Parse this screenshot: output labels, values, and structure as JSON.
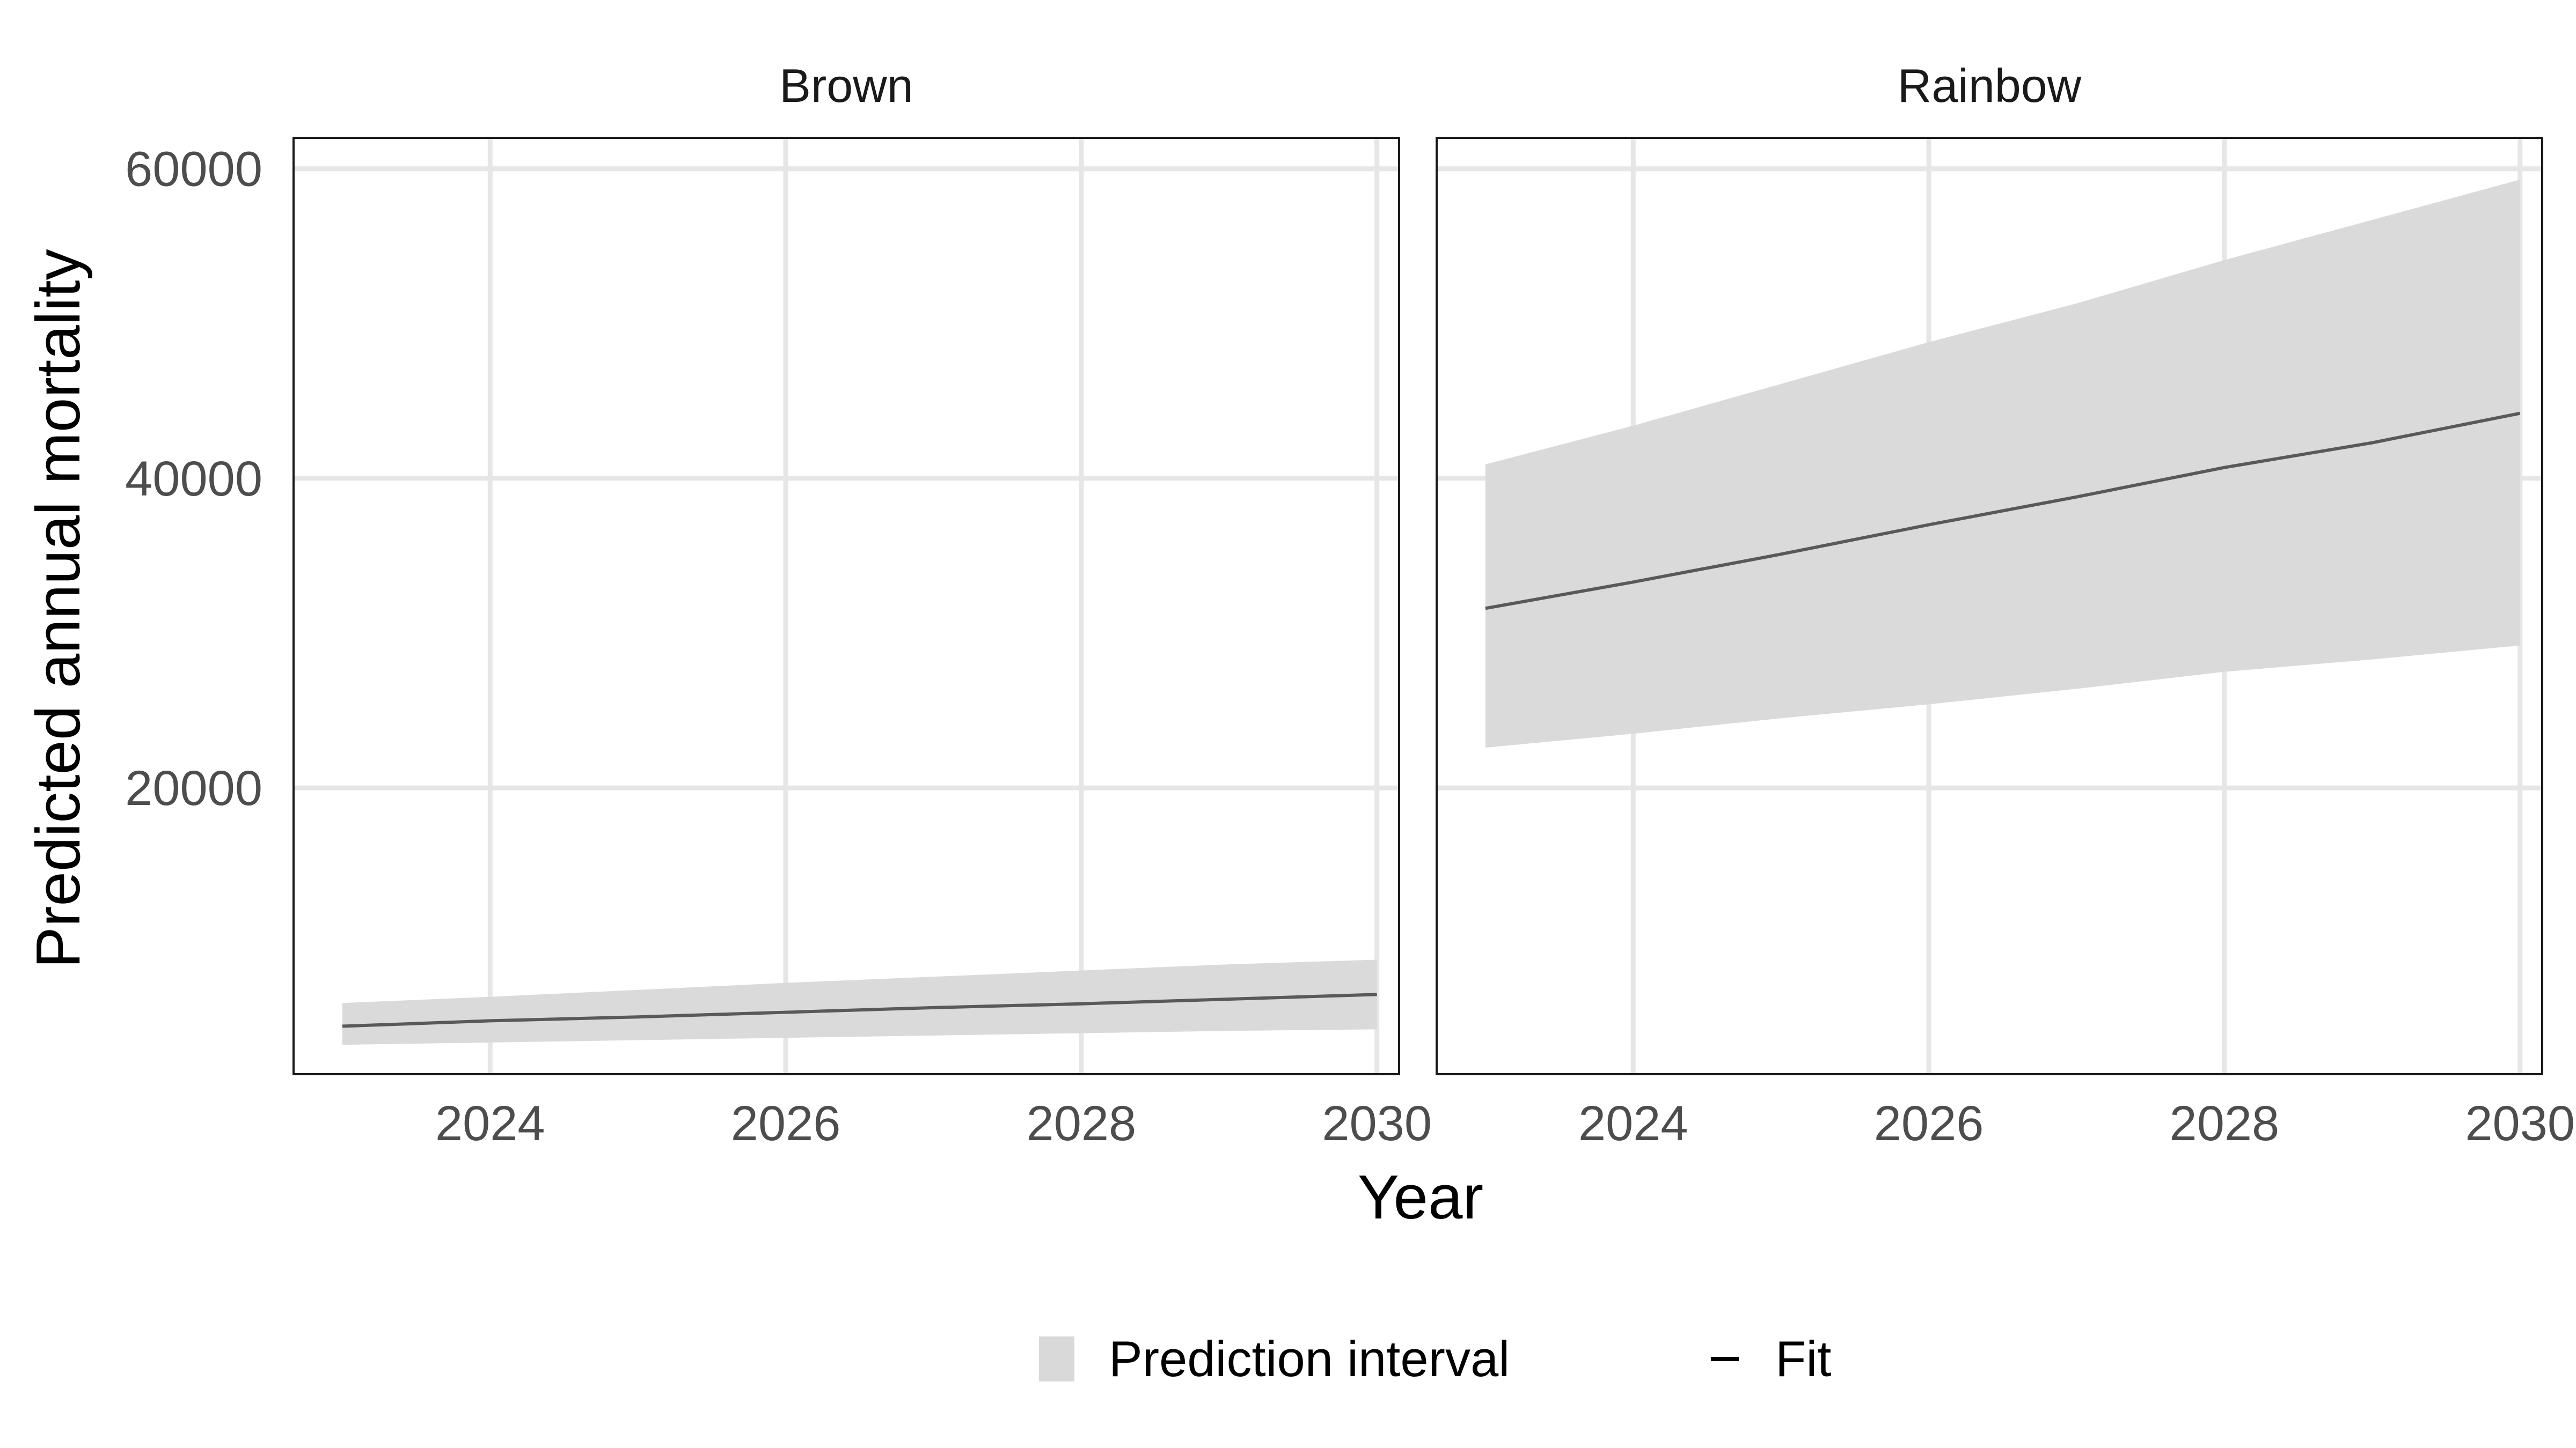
{
  "chart_data": {
    "type": "area",
    "xlabel": "Year",
    "ylabel": "Predicted annual mortality",
    "xlim": [
      2022.67,
      2030.15
    ],
    "ylim": [
      1500,
      62000
    ],
    "x_ticks": [
      2024,
      2026,
      2028,
      2030
    ],
    "y_ticks": [
      20000,
      40000,
      60000
    ],
    "grid": true,
    "legend_position": "bottom",
    "legend": [
      {
        "key": "interval",
        "label": "Prediction interval",
        "color": "#d9d9d9"
      },
      {
        "key": "fit",
        "label": "Fit",
        "color": "#595959"
      }
    ],
    "panels": [
      {
        "name": "Brown",
        "x": [
          2023,
          2024,
          2025,
          2026,
          2027,
          2028,
          2029,
          2030
        ],
        "fit": [
          4600,
          4950,
          5200,
          5500,
          5800,
          6050,
          6350,
          6650
        ],
        "lower": [
          3400,
          3550,
          3700,
          3850,
          4000,
          4150,
          4300,
          4400
        ],
        "upper": [
          6100,
          6500,
          6950,
          7400,
          7800,
          8200,
          8600,
          8900
        ]
      },
      {
        "name": "Rainbow",
        "x": [
          2023,
          2024,
          2025,
          2026,
          2027,
          2028,
          2029,
          2030
        ],
        "fit": [
          31600,
          33300,
          35100,
          37000,
          38800,
          40700,
          42300,
          44200
        ],
        "lower": [
          22600,
          23500,
          24500,
          25400,
          26400,
          27500,
          28300,
          29200
        ],
        "upper": [
          40900,
          43400,
          46100,
          48800,
          51300,
          54100,
          56700,
          59300
        ]
      }
    ]
  },
  "colors": {
    "interval_fill": "#d9d9d9",
    "fit_line": "#595959",
    "grid": "#e6e6e6"
  }
}
